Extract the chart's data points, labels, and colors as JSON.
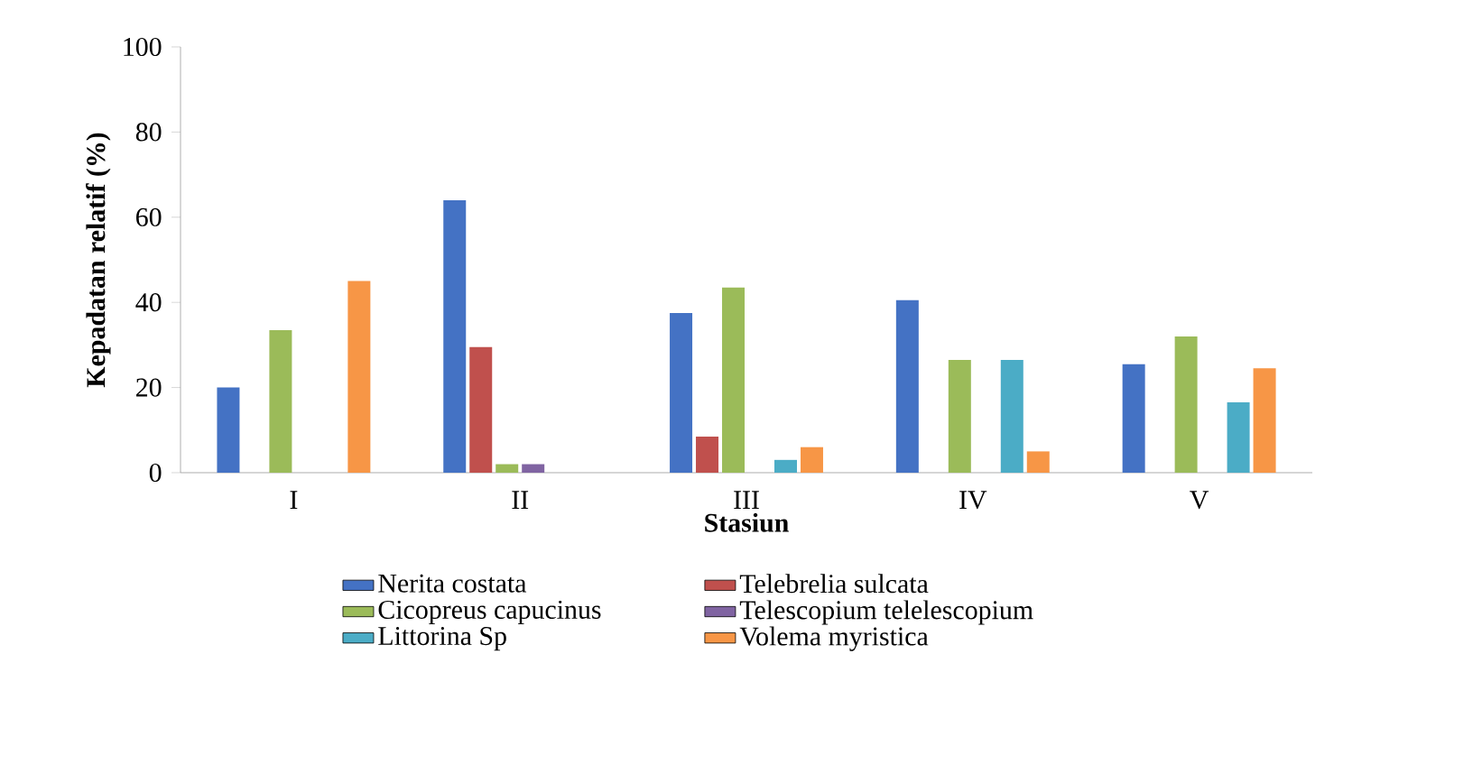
{
  "chart_data": {
    "type": "bar",
    "xlabel": "Stasiun",
    "ylabel": "Kepadatan relatif (%)",
    "categories": [
      "I",
      "II",
      "III",
      "IV",
      "V"
    ],
    "series": [
      {
        "name": "Nerita costata",
        "color": "#4472c4",
        "values": [
          20,
          64,
          37.5,
          40.5,
          25.5
        ]
      },
      {
        "name": "Telebrelia sulcata",
        "color": "#c0504d",
        "values": [
          null,
          29.5,
          8.5,
          null,
          null
        ]
      },
      {
        "name": "Cicopreus capucinus",
        "color": "#9bbb59",
        "values": [
          33.5,
          2,
          43.5,
          26.5,
          32
        ]
      },
      {
        "name": "Telescopium telelescopium",
        "color": "#8064a2",
        "values": [
          null,
          2,
          null,
          null,
          null
        ]
      },
      {
        "name": "Littorina Sp",
        "color": "#4bacc6",
        "values": [
          null,
          null,
          3,
          26.5,
          16.5
        ]
      },
      {
        "name": "Volema myristica",
        "color": "#f79646",
        "values": [
          45,
          null,
          6,
          5,
          24.5
        ]
      }
    ],
    "ylim": [
      0,
      100
    ],
    "yticks": [
      0,
      20,
      40,
      60,
      80,
      100
    ],
    "grid": false,
    "legend": "bottom"
  }
}
